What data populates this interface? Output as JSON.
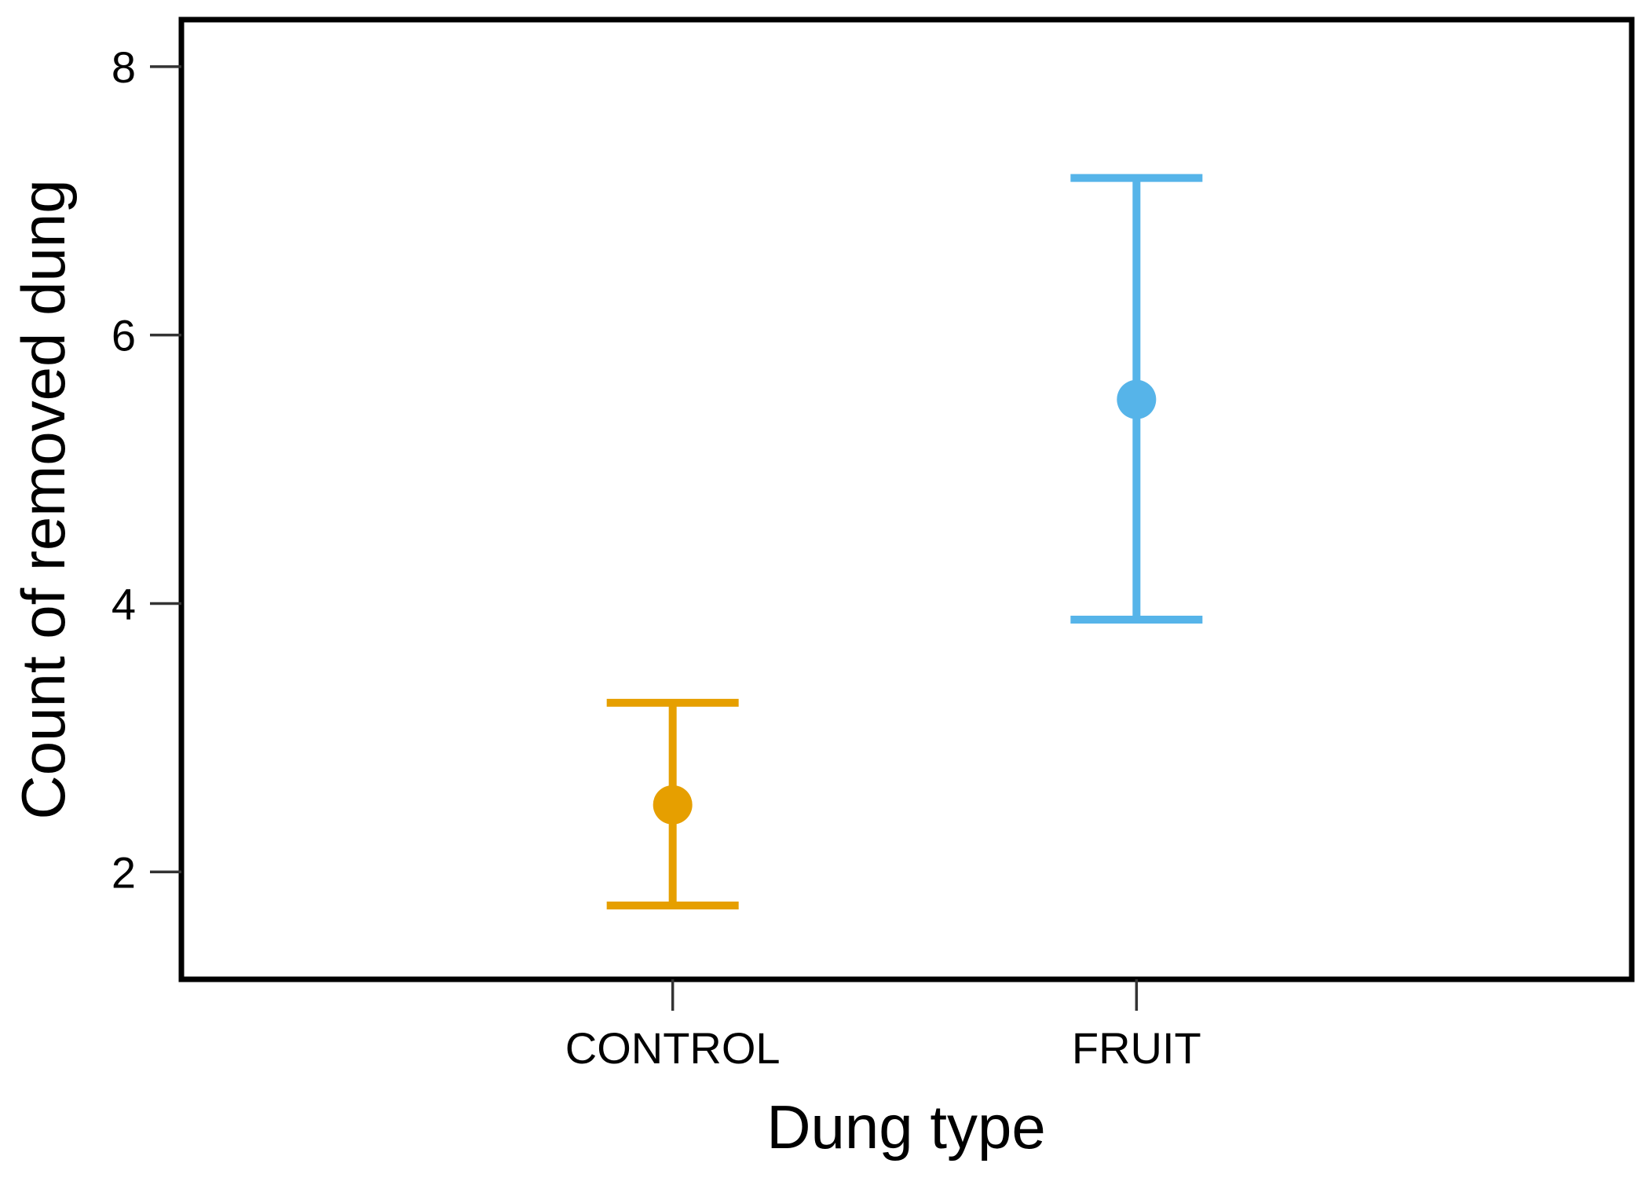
{
  "chart_data": {
    "type": "errorbar",
    "title": "",
    "xlabel": "Dung type",
    "ylabel": "Count of removed dung",
    "categories": [
      "CONTROL",
      "FRUIT"
    ],
    "values": [
      2.5,
      5.52
    ],
    "ci_lower": [
      1.75,
      3.88
    ],
    "ci_upper": [
      3.26,
      7.17
    ],
    "colors": [
      "#E69F00",
      "#56B4E9"
    ],
    "ylim": [
      1.2,
      8.35
    ],
    "yticks": [
      2,
      4,
      6,
      8
    ],
    "grid": false,
    "legend": "none"
  }
}
